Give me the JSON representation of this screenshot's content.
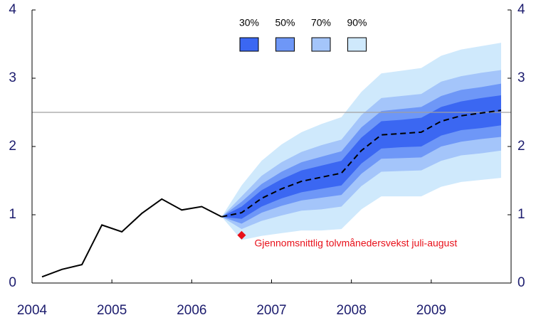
{
  "chart_data": {
    "type": "fan",
    "xlim": [
      2004,
      2010
    ],
    "xticks": [
      2004,
      2005,
      2006,
      2007,
      2008,
      2009
    ],
    "ylim": [
      0,
      4
    ],
    "yticks": [
      0,
      1,
      2,
      3,
      4
    ],
    "y2lim": [
      0,
      4
    ],
    "y2ticks": [
      0,
      1,
      2,
      3,
      4
    ],
    "reference_line": {
      "value": 2.5,
      "color": "#a0a0a0"
    },
    "history": {
      "color": "#000000",
      "x": [
        2004.125,
        2004.375,
        2004.625,
        2004.875,
        2005.125,
        2005.375,
        2005.625,
        2005.875,
        2006.125,
        2006.375
      ],
      "values": [
        0.09,
        0.2,
        0.27,
        0.85,
        0.75,
        1.02,
        1.23,
        1.07,
        1.12,
        0.97
      ]
    },
    "projection": {
      "color": "#000000",
      "x": [
        2006.375,
        2006.625,
        2006.875,
        2007.125,
        2007.375,
        2007.625,
        2007.875,
        2008.125,
        2008.375,
        2008.625,
        2008.875,
        2009.125,
        2009.375,
        2009.625,
        2009.875
      ],
      "median": [
        0.97,
        1.03,
        1.24,
        1.38,
        1.49,
        1.55,
        1.61,
        1.94,
        2.17,
        2.19,
        2.21,
        2.37,
        2.45,
        2.49,
        2.53
      ]
    },
    "bands": [
      {
        "name": "30%",
        "color": "#3b67f2",
        "lower": [
          0.97,
          0.94,
          1.12,
          1.24,
          1.33,
          1.38,
          1.43,
          1.75,
          1.97,
          1.99,
          2.0,
          2.16,
          2.24,
          2.27,
          2.31
        ],
        "upper": [
          0.97,
          1.12,
          1.36,
          1.52,
          1.65,
          1.72,
          1.79,
          2.13,
          2.37,
          2.39,
          2.42,
          2.58,
          2.66,
          2.71,
          2.75
        ]
      },
      {
        "name": "50%",
        "color": "#6e97f7",
        "lower": [
          0.97,
          0.87,
          1.03,
          1.13,
          1.21,
          1.25,
          1.29,
          1.6,
          1.82,
          1.83,
          1.84,
          2.0,
          2.07,
          2.11,
          2.14
        ],
        "upper": [
          0.97,
          1.19,
          1.45,
          1.63,
          1.77,
          1.85,
          1.93,
          2.28,
          2.52,
          2.55,
          2.58,
          2.74,
          2.83,
          2.87,
          2.92
        ]
      },
      {
        "name": "70%",
        "color": "#a4c5fa",
        "lower": [
          0.97,
          0.79,
          0.91,
          0.99,
          1.06,
          1.08,
          1.12,
          1.42,
          1.63,
          1.64,
          1.65,
          1.79,
          1.87,
          1.9,
          1.94
        ],
        "upper": [
          0.97,
          1.27,
          1.57,
          1.77,
          1.92,
          2.02,
          2.1,
          2.46,
          2.71,
          2.74,
          2.77,
          2.95,
          3.03,
          3.08,
          3.12
        ]
      },
      {
        "name": "90%",
        "color": "#cfe9fc",
        "lower": [
          0.97,
          0.63,
          0.69,
          0.73,
          0.77,
          0.77,
          0.79,
          1.08,
          1.27,
          1.27,
          1.27,
          1.41,
          1.48,
          1.51,
          1.54
        ],
        "upper": [
          0.97,
          1.43,
          1.79,
          2.03,
          2.21,
          2.33,
          2.43,
          2.8,
          3.07,
          3.11,
          3.15,
          3.33,
          3.42,
          3.47,
          3.52
        ]
      }
    ],
    "annotation": {
      "text": "Gjennomsnittlig tolvmånedersvekst juli-august",
      "x": 2006.625,
      "y": 0.7,
      "color": "#e8101a"
    }
  }
}
